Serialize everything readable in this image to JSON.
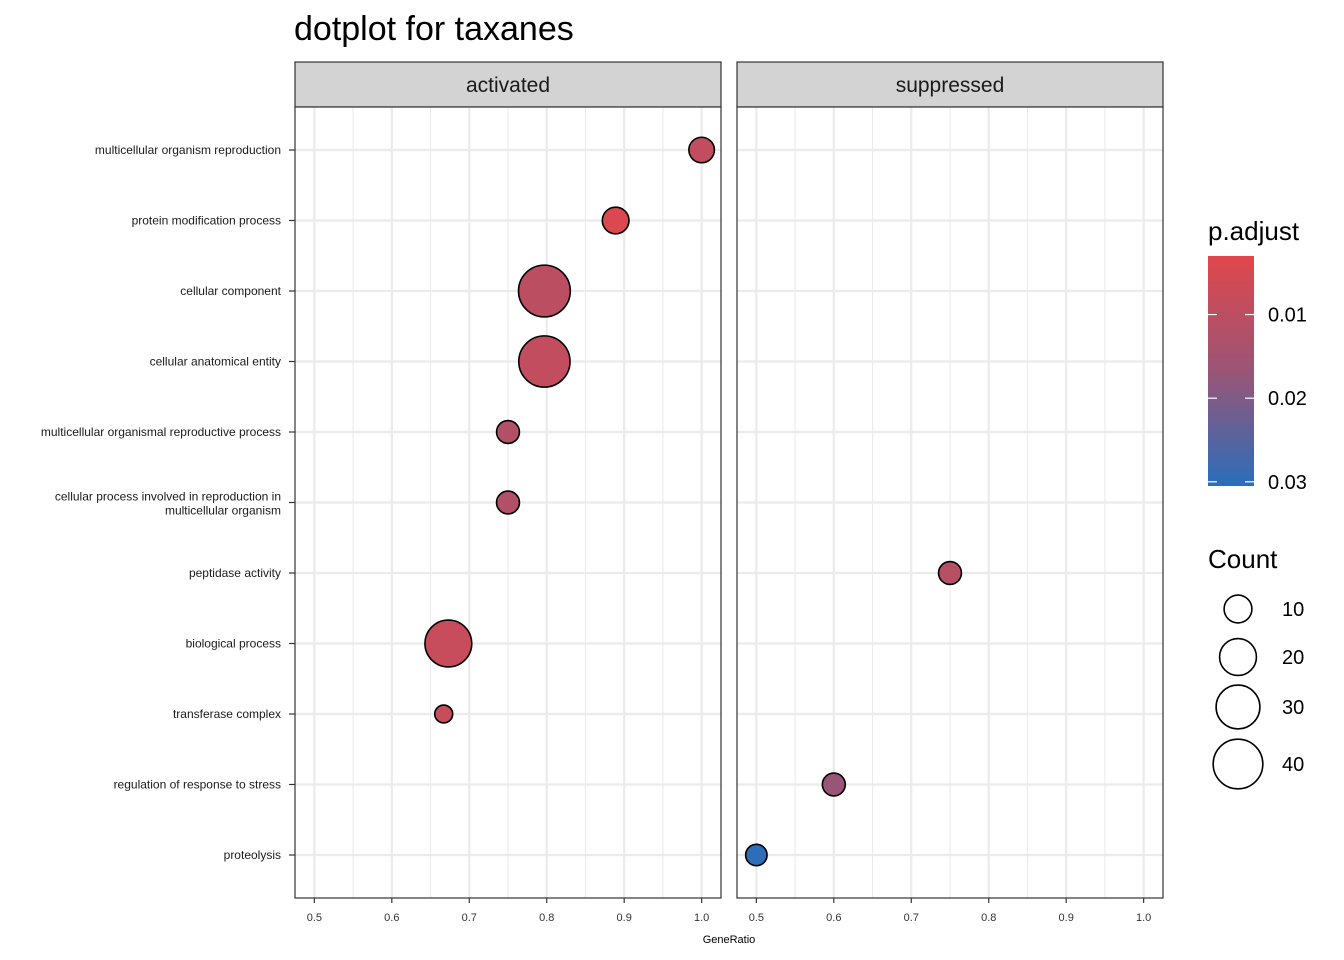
{
  "chart_data": {
    "type": "scatter",
    "title": "dotplot for taxanes",
    "xlabel": "GeneRatio",
    "xlim": [
      0.475,
      1.025
    ],
    "xticks": [
      "0.5",
      "0.6",
      "0.7",
      "0.8",
      "0.9",
      "1.0"
    ],
    "grid": true,
    "panels": [
      "activated",
      "suppressed"
    ],
    "categories": [
      "multicellular organism reproduction",
      "protein modification process",
      "cellular component",
      "cellular anatomical entity",
      "multicellular organismal reproductive process",
      "cellular process involved in reproduction in\nmulticellular organism",
      "peptidase activity",
      "biological process",
      "transferase complex",
      "regulation of response to stress",
      "proteolysis"
    ],
    "points": [
      {
        "panel": "activated",
        "category": "multicellular organism reproduction",
        "x": 1.0,
        "count": 8,
        "p_adjust": 0.009
      },
      {
        "panel": "activated",
        "category": "protein modification process",
        "x": 0.889,
        "count": 9,
        "p_adjust": 0.004
      },
      {
        "panel": "activated",
        "category": "cellular component",
        "x": 0.797,
        "count": 44,
        "p_adjust": 0.01
      },
      {
        "panel": "activated",
        "category": "cellular anatomical entity",
        "x": 0.797,
        "count": 43,
        "p_adjust": 0.009
      },
      {
        "panel": "activated",
        "category": "multicellular organismal reproductive process",
        "x": 0.75,
        "count": 6,
        "p_adjust": 0.012
      },
      {
        "panel": "activated",
        "category": "cellular process involved in reproduction in\nmulticellular organism",
        "x": 0.75,
        "count": 6,
        "p_adjust": 0.012
      },
      {
        "panel": "activated",
        "category": "biological process",
        "x": 0.673,
        "count": 35,
        "p_adjust": 0.008
      },
      {
        "panel": "activated",
        "category": "transferase complex",
        "x": 0.667,
        "count": 3,
        "p_adjust": 0.008
      },
      {
        "panel": "suppressed",
        "category": "peptidase activity",
        "x": 0.75,
        "count": 6,
        "p_adjust": 0.011
      },
      {
        "panel": "suppressed",
        "category": "regulation of response to stress",
        "x": 0.6,
        "count": 6,
        "p_adjust": 0.017
      },
      {
        "panel": "suppressed",
        "category": "proteolysis",
        "x": 0.5,
        "count": 5,
        "p_adjust": 0.03
      }
    ],
    "color_legend": {
      "title": "p.adjust",
      "low_color": "#E0474C",
      "mid_color": "#9A5577",
      "high_color": "#2A6EBB",
      "range": [
        0.003,
        0.0305
      ],
      "ticks": [
        0.01,
        0.02,
        0.03
      ],
      "tick_labels": [
        "0.01",
        "0.02",
        "0.03"
      ]
    },
    "size_legend": {
      "title": "Count",
      "values": [
        10,
        20,
        30,
        40
      ],
      "labels": [
        "10",
        "20",
        "30",
        "40"
      ]
    }
  }
}
